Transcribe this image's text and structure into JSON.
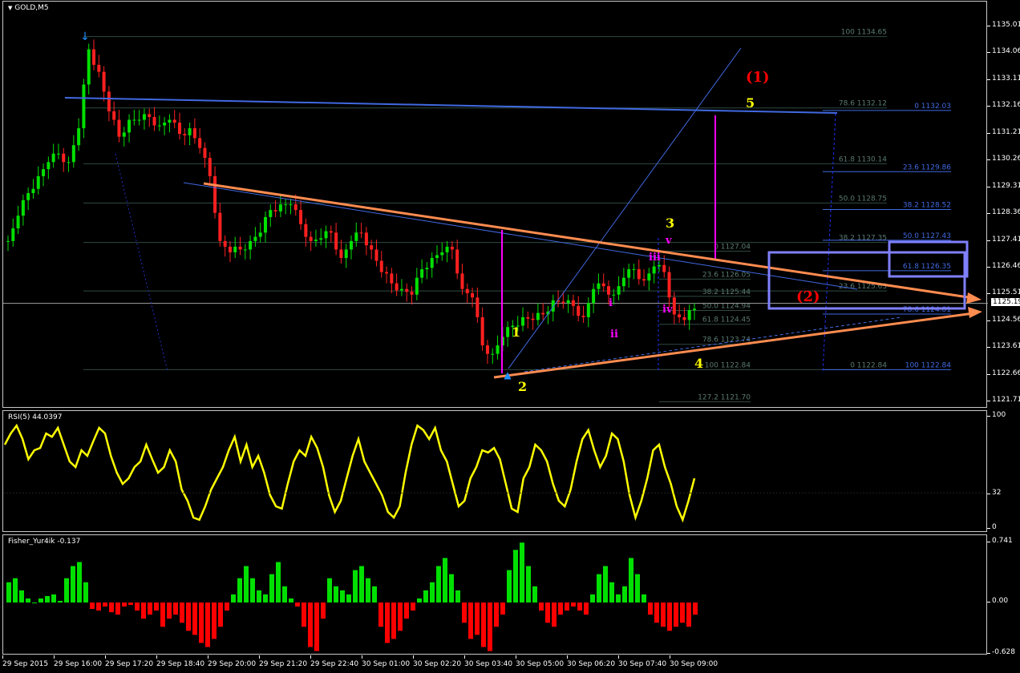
{
  "window": {
    "symbol_title": "GOLD,M5",
    "dropdown_icon": "triangle-down-icon"
  },
  "colors": {
    "bull": "#00e000",
    "bear": "#ff2020",
    "rsi": "#ffff00",
    "fib_gray": "#3c5a50",
    "fib_blue": "#4169e1",
    "trend": "#ff8c50",
    "box": "#8080ff",
    "wave_yellow": "#ffff00",
    "wave_magenta": "#ff00ff",
    "wave_red": "#ff0000"
  },
  "chart_data": [
    {
      "type": "candlestick",
      "title": "GOLD,M5",
      "ylim": [
        1121.71,
        1135.01
      ],
      "price_ticks": [
        "1135.01",
        "1134.06",
        "1133.11",
        "1132.16",
        "1131.21",
        "1130.26",
        "1129.31",
        "1128.36",
        "1127.41",
        "1126.46",
        "1125.51",
        "1124.56",
        "1123.61",
        "1122.66",
        "1121.71"
      ],
      "current_price": "1125.19",
      "x_ticks": [
        "29 Sep 2015",
        "29 Sep 16:00",
        "29 Sep 17:20",
        "29 Sep 18:40",
        "29 Sep 20:00",
        "29 Sep 21:20",
        "29 Sep 22:40",
        "30 Sep 01:00",
        "30 Sep 02:20",
        "30 Sep 03:40",
        "30 Sep 05:00",
        "30 Sep 06:20",
        "30 Sep 07:40",
        "30 Sep 09:00"
      ],
      "closes": [
        1127.4,
        1128.3,
        1129.1,
        1129.7,
        1130.2,
        1130.5,
        1130.2,
        1131.4,
        1134.2,
        1133.4,
        1132.0,
        1131.1,
        1131.7,
        1131.7,
        1131.8,
        1131.5,
        1131.7,
        1131.2,
        1131.4,
        1130.7,
        1129.7,
        1127.4,
        1127.0,
        1127.1,
        1127.4,
        1127.7,
        1128.5,
        1128.7,
        1128.7,
        1128.0,
        1127.4,
        1127.5,
        1127.7,
        1126.8,
        1127.4,
        1127.7,
        1127.1,
        1126.3,
        1125.9,
        1125.7,
        1125.5,
        1126.4,
        1126.8,
        1127.0,
        1127.1,
        1125.7,
        1125.4,
        1123.7,
        1123.4,
        1124.0,
        1124.4,
        1124.7,
        1124.6,
        1124.8,
        1125.3,
        1125.2,
        1125.1,
        1124.7,
        1125.7,
        1125.8,
        1125.5,
        1126.1,
        1126.4,
        1126.0,
        1126.5,
        1126.3,
        1124.8,
        1124.6,
        1125.0
      ],
      "fib_sets": [
        {
          "color": "fib_gray",
          "levels": [
            {
              "label": "100 1134.65",
              "price": 1134.65
            },
            {
              "label": "78.6 1132.12",
              "price": 1132.12
            },
            {
              "label": "61.8 1130.14",
              "price": 1130.14
            },
            {
              "label": "50.0 1128.75",
              "price": 1128.75
            },
            {
              "label": "38.2 1127.35",
              "price": 1127.35
            },
            {
              "label": "23.6 1125.63",
              "price": 1125.63
            },
            {
              "label": "0 1122.84",
              "price": 1122.84
            }
          ]
        },
        {
          "color": "fib_gray",
          "levels": [
            {
              "label": "0 1127.04",
              "price": 1127.04
            },
            {
              "label": "23.6 1126.05",
              "price": 1126.05
            },
            {
              "label": "38.2 1125.44",
              "price": 1125.44
            },
            {
              "label": "50.0 1124.94",
              "price": 1124.94
            },
            {
              "label": "61.8 1124.45",
              "price": 1124.45
            },
            {
              "label": "78.6 1123.74",
              "price": 1123.74
            },
            {
              "label": "100 1122.84",
              "price": 1122.84
            },
            {
              "label": "127.2 1121.70",
              "price": 1121.7
            }
          ]
        },
        {
          "color": "fib_blue",
          "levels": [
            {
              "label": "0 1132.03",
              "price": 1132.03
            },
            {
              "label": "23.6 1129.86",
              "price": 1129.86
            },
            {
              "label": "38.2 1128.52",
              "price": 1128.52
            },
            {
              "label": "50.0 1127.43",
              "price": 1127.43
            },
            {
              "label": "61.8 1126.35",
              "price": 1126.35
            },
            {
              "label": "78.6 1124.81",
              "price": 1124.81
            },
            {
              "label": "100 1122.84",
              "price": 1122.84
            }
          ]
        }
      ],
      "wave_labels": {
        "w1_major": "(1)",
        "w5": "5",
        "w3": "3",
        "wv": "v",
        "wiii": "iii",
        "wiv": "iv",
        "wi": "i",
        "wii": "ii",
        "w1": "1",
        "w2": "2",
        "w4": "4",
        "w2_major": "(2)"
      }
    },
    {
      "type": "line",
      "title": "RSI(5) 44.0397",
      "ylim": [
        0,
        100
      ],
      "y_ticks": [
        "100",
        "32",
        "0"
      ],
      "values": [
        75,
        85,
        92,
        80,
        62,
        70,
        72,
        85,
        82,
        90,
        75,
        60,
        55,
        70,
        65,
        78,
        90,
        85,
        65,
        50,
        40,
        45,
        55,
        60,
        75,
        62,
        50,
        55,
        70,
        60,
        35,
        25,
        10,
        8,
        20,
        35,
        45,
        55,
        70,
        82,
        60,
        75,
        55,
        65,
        50,
        30,
        20,
        18,
        40,
        60,
        70,
        65,
        82,
        72,
        55,
        30,
        15,
        25,
        45,
        65,
        80,
        60,
        50,
        40,
        30,
        15,
        10,
        20,
        50,
        75,
        92,
        88,
        80,
        90,
        70,
        60,
        40,
        20,
        25,
        45,
        55,
        70,
        68,
        72,
        62,
        40,
        18,
        15,
        45,
        55,
        75,
        70,
        60,
        40,
        25,
        20,
        35,
        60,
        80,
        88,
        70,
        55,
        65,
        85,
        80,
        60,
        30,
        10,
        25,
        45,
        70,
        75,
        55,
        40,
        20,
        8,
        25,
        45
      ]
    },
    {
      "type": "bar",
      "title": "Fisher_Yur4ik -0.137",
      "ylim": [
        -0.628,
        0.741
      ],
      "y_ticks": [
        "0.741",
        "0.00",
        "-0.628"
      ],
      "values": [
        0.25,
        0.3,
        0.15,
        0.05,
        0.0,
        0.05,
        0.08,
        0.1,
        0.02,
        0.3,
        0.45,
        0.5,
        0.25,
        -0.08,
        -0.1,
        -0.05,
        -0.12,
        -0.15,
        -0.05,
        -0.03,
        -0.1,
        -0.2,
        -0.15,
        -0.1,
        -0.3,
        -0.2,
        -0.15,
        -0.25,
        -0.35,
        -0.4,
        -0.5,
        -0.55,
        -0.45,
        -0.3,
        -0.1,
        0.1,
        0.3,
        0.45,
        0.3,
        0.15,
        0.1,
        0.35,
        0.5,
        0.2,
        0.05,
        -0.05,
        -0.3,
        -0.55,
        -0.6,
        -0.2,
        0.3,
        0.2,
        0.15,
        0.1,
        0.4,
        0.45,
        0.3,
        0.2,
        -0.3,
        -0.5,
        -0.45,
        -0.35,
        -0.2,
        -0.1,
        0.05,
        0.15,
        0.25,
        0.45,
        0.55,
        0.35,
        0.15,
        -0.25,
        -0.45,
        -0.4,
        -0.55,
        -0.6,
        -0.3,
        -0.15,
        0.4,
        0.65,
        0.74,
        0.45,
        0.2,
        -0.1,
        -0.25,
        -0.3,
        -0.15,
        -0.1,
        -0.05,
        -0.1,
        -0.15,
        0.1,
        0.35,
        0.45,
        0.25,
        0.1,
        0.2,
        0.55,
        0.35,
        0.1,
        -0.15,
        -0.25,
        -0.3,
        -0.35,
        -0.3,
        -0.25,
        -0.3,
        -0.15
      ]
    }
  ]
}
